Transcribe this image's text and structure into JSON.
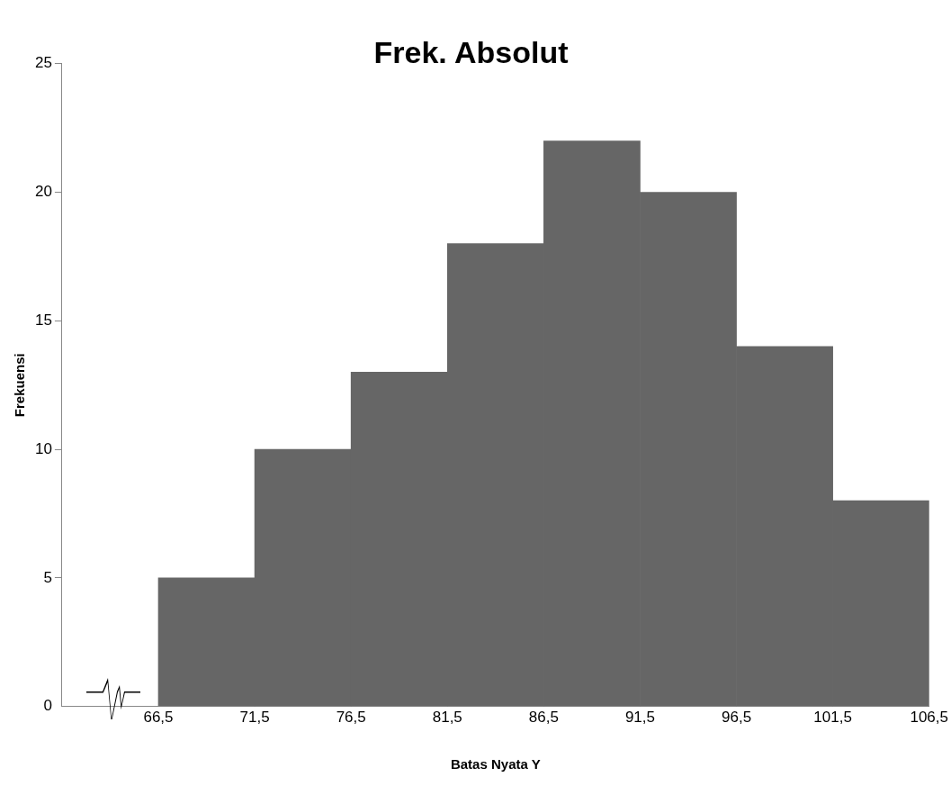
{
  "chart_data": {
    "type": "histogram",
    "title": "Frek. Absolut",
    "xlabel": "Batas Nyata Y",
    "ylabel": "Frekuensi",
    "bins": [
      66.5,
      71.5,
      76.5,
      81.5,
      86.5,
      91.5,
      96.5,
      101.5,
      106.5
    ],
    "values": [
      5,
      10,
      13,
      18,
      22,
      20,
      14,
      8
    ],
    "color": "#666666",
    "xlim": [
      61.5,
      106.5
    ],
    "xticks": [
      {
        "value": 66.5,
        "label": "66,5"
      },
      {
        "value": 71.5,
        "label": "71,5"
      },
      {
        "value": 76.5,
        "label": "76,5"
      },
      {
        "value": 81.5,
        "label": "81,5"
      },
      {
        "value": 86.5,
        "label": "86,5"
      },
      {
        "value": 91.5,
        "label": "91,5"
      },
      {
        "value": 96.5,
        "label": "96,5"
      },
      {
        "value": 101.5,
        "label": "101,5"
      },
      {
        "value": 106.5,
        "label": "106,5"
      }
    ],
    "ylim": [
      0,
      25
    ],
    "yticks": [
      0,
      5,
      10,
      15,
      20,
      25
    ],
    "grid": false,
    "legend": false
  }
}
